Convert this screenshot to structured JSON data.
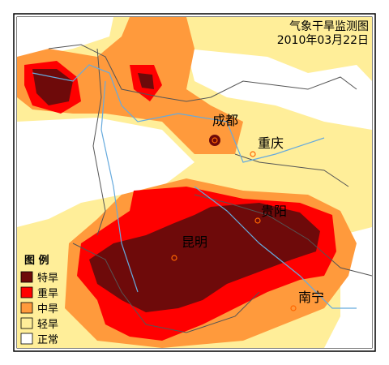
{
  "header": {
    "title": "气象干旱监测图",
    "date": "2010年03月22日"
  },
  "cities": [
    {
      "label": "成都"
    },
    {
      "label": "重庆"
    },
    {
      "label": "贵阳"
    },
    {
      "label": "昆明"
    },
    {
      "label": "南宁"
    }
  ],
  "legend": {
    "title": "图 例",
    "items": [
      {
        "label": "特旱",
        "color": "#6e0a0a"
      },
      {
        "label": "重旱",
        "color": "#ff0000"
      },
      {
        "label": "中旱",
        "color": "#ff9a3c"
      },
      {
        "label": "轻旱",
        "color": "#ffee99"
      },
      {
        "label": "正常",
        "color": "#ffffff"
      }
    ]
  }
}
